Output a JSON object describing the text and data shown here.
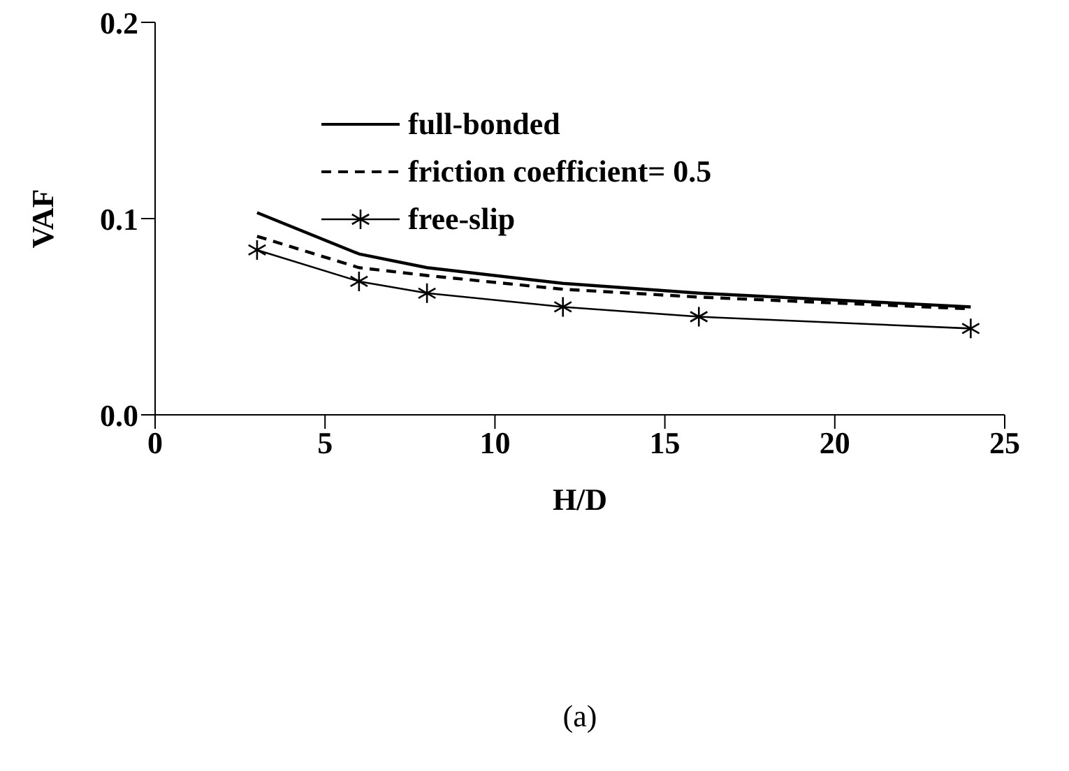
{
  "chart_data": {
    "type": "line",
    "xlabel": "H/D",
    "ylabel": "VAF",
    "annotations": [
      "(a)"
    ],
    "x": [
      3,
      6,
      8,
      12,
      16,
      24
    ],
    "series": [
      {
        "name": "full-bonded",
        "color": "#000000",
        "values": [
          0.103,
          0.082,
          0.075,
          0.067,
          0.062,
          0.055
        ],
        "line_style": "solid",
        "marker": "none"
      },
      {
        "name": "friction coefficient= 0.5",
        "color": "#000000",
        "values": [
          0.091,
          0.075,
          0.071,
          0.064,
          0.06,
          0.054
        ],
        "line_style": "dashed",
        "marker": "none"
      },
      {
        "name": "free-slip",
        "color": "#000000",
        "values": [
          0.084,
          0.068,
          0.062,
          0.055,
          0.05,
          0.044
        ],
        "line_style": "solid",
        "marker": "cross"
      }
    ],
    "xlim": [
      0,
      25
    ],
    "xticks": [
      0,
      5,
      10,
      15,
      20,
      25
    ],
    "ylim": [
      0,
      0.2
    ],
    "yticks": [
      {
        "value": 0,
        "label": "0.0"
      },
      {
        "value": 0.1,
        "label": "0.1"
      },
      {
        "value": 0.2,
        "label": "0.2"
      }
    ],
    "grid": false,
    "legend": "top"
  }
}
